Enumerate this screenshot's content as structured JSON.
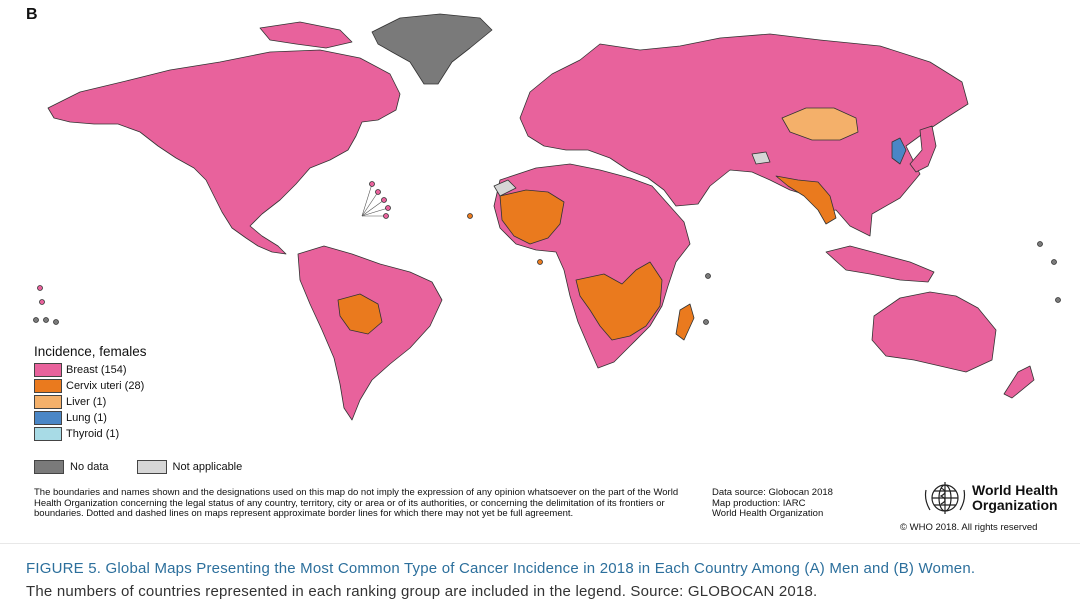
{
  "panel_label": "B",
  "colors": {
    "breast": "#e8629c",
    "cervix": "#ea7a1e",
    "liver": "#f4b06a",
    "lung": "#4a86c6",
    "thyroid": "#a8dbe6",
    "no_data": "#7a7a7a",
    "not_applicable": "#d6d6d6",
    "border": "#333333"
  },
  "legend": {
    "title": "Incidence, females",
    "items": [
      {
        "label": "Breast (154)",
        "color": "#e8629c"
      },
      {
        "label": "Cervix uteri (28)",
        "color": "#ea7a1e"
      },
      {
        "label": "Liver (1)",
        "color": "#f4b06a"
      },
      {
        "label": "Lung (1)",
        "color": "#4a86c6"
      },
      {
        "label": "Thyroid (1)",
        "color": "#a8dbe6"
      }
    ],
    "no_data": "No data",
    "not_applicable": "Not applicable"
  },
  "disclaimer": "The boundaries and names shown and the designations used on this map do not imply the expression of any opinion whatsoever on the part of the World Health Organization concerning the legal status of any country, territory, city or area or of its authorities, or concerning the delimitation of its frontiers or boundaries. Dotted and dashed lines on maps represent approximate border lines for which there may not yet be full agreement.",
  "source": {
    "line1": "Data source: Globocan 2018",
    "line2": "Map production: IARC",
    "line3": "World Health Organization"
  },
  "who": {
    "line1": "World Health",
    "line2": "Organization",
    "copyright": "© WHO 2018. All rights reserved"
  },
  "caption": {
    "figure": "FIGURE 5. Global Maps Presenting the Most Common Type of Cancer Incidence in 2018 in Each Country Among (A) Men and (B) Women.",
    "note": "The numbers of countries represented in each ranking group are included in the legend. Source: GLOBOCAN 2018."
  }
}
